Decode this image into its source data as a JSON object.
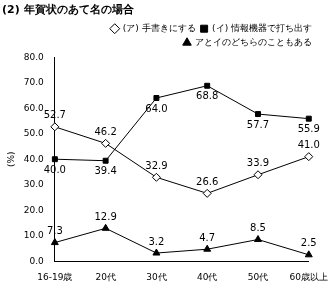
{
  "chart_data": {
    "type": "line",
    "title": "(2) 年賀状のあて名の場合",
    "y_label": "(%)",
    "categories": [
      "16-19歳",
      "20代",
      "30代",
      "40代",
      "50代",
      "60歳以上"
    ],
    "series": [
      {
        "name": "(ア) 手書きにする",
        "color": "#000000",
        "marker": "open_diamond",
        "line_style": "solid",
        "values": [
          52.7,
          46.2,
          32.9,
          26.6,
          33.9,
          41.0
        ],
        "value_labels": [
          "52.7",
          "46.2",
          "32.9",
          "26.6",
          "33.9",
          "41.0"
        ]
      },
      {
        "name": "(イ) 情報機器で打ち出す",
        "color": "#000000",
        "marker": "square",
        "line_style": "solid",
        "values": [
          40.0,
          39.4,
          64.0,
          68.8,
          57.7,
          55.9
        ],
        "value_labels": [
          "40.0",
          "39.4",
          "64.0",
          "68.8",
          "57.7",
          "55.9"
        ]
      },
      {
        "name": "アとイのどちらのこともある",
        "color": "#000000",
        "marker": "triangle",
        "line_style": "solid",
        "values": [
          7.3,
          12.9,
          3.2,
          4.7,
          8.5,
          2.5
        ],
        "value_labels": [
          "7.3",
          "12.9",
          "3.2",
          "4.7",
          "8.5",
          "2.5"
        ]
      }
    ],
    "ylim": [
      0,
      80
    ],
    "yticks": [
      {
        "value": 0,
        "label": "0.0"
      },
      {
        "value": 10,
        "label": "10.0"
      },
      {
        "value": 20,
        "label": "20.0"
      },
      {
        "value": 30,
        "label": "30.0"
      },
      {
        "value": 40,
        "label": "40.0"
      },
      {
        "value": 50,
        "label": "50.0"
      },
      {
        "value": 60,
        "label": "60.0"
      },
      {
        "value": 70,
        "label": "70.0"
      },
      {
        "value": 80,
        "label": "80.0"
      }
    ],
    "grid": false,
    "legend": "upper right",
    "data_labels": true
  }
}
